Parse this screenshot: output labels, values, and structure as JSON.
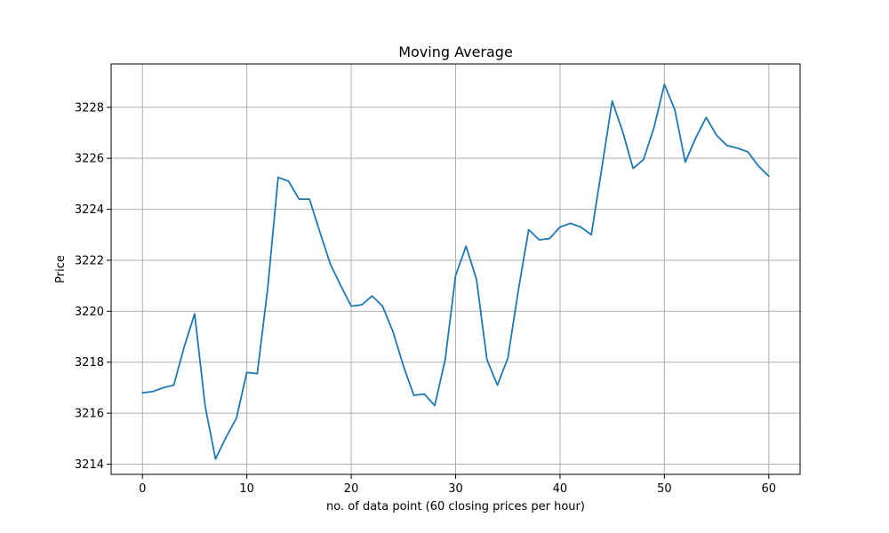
{
  "chart_data": {
    "type": "line",
    "title": "Moving Average",
    "xlabel": "no. of data point (60 closing prices per hour)",
    "ylabel": "Price",
    "xlim": [
      -3,
      63
    ],
    "ylim": [
      3213.6,
      3229.7
    ],
    "xticks": [
      0,
      10,
      20,
      30,
      40,
      50,
      60
    ],
    "yticks": [
      3214,
      3216,
      3218,
      3220,
      3222,
      3224,
      3226,
      3228
    ],
    "grid": true,
    "colors": {
      "line": "#1f77b4"
    },
    "series": [
      {
        "x": [
          0,
          1,
          2,
          3,
          4,
          5,
          6,
          7,
          8,
          9,
          10,
          11,
          12,
          13,
          14,
          15,
          16,
          17,
          18,
          19,
          20,
          21,
          22,
          23,
          24,
          25,
          26,
          27,
          28,
          29,
          30,
          31,
          32,
          33,
          34,
          35,
          36,
          37,
          38,
          39,
          40,
          41,
          42,
          43,
          44,
          45,
          46,
          47,
          48,
          49,
          50,
          51,
          52,
          53,
          54,
          55,
          56,
          57,
          58,
          59,
          60
        ],
        "values": [
          3216.8,
          3216.85,
          3217.0,
          3217.1,
          3218.6,
          3219.9,
          3216.3,
          3214.2,
          3215.05,
          3215.8,
          3217.6,
          3217.55,
          3220.9,
          3225.25,
          3225.1,
          3224.4,
          3224.4,
          3223.1,
          3221.85,
          3221.0,
          3220.2,
          3220.25,
          3220.6,
          3220.2,
          3219.2,
          3217.85,
          3216.7,
          3216.75,
          3216.3,
          3218.1,
          3221.4,
          3222.55,
          3221.25,
          3218.1,
          3217.1,
          3218.15,
          3220.8,
          3223.2,
          3222.8,
          3222.85,
          3223.3,
          3223.45,
          3223.3,
          3223.0,
          3225.6,
          3228.25,
          3227.05,
          3225.6,
          3225.95,
          3227.2,
          3228.9,
          3227.9,
          3225.85,
          3226.8,
          3227.6,
          3226.9,
          3226.5,
          3226.4,
          3226.25,
          3225.7,
          3225.3
        ]
      }
    ]
  }
}
